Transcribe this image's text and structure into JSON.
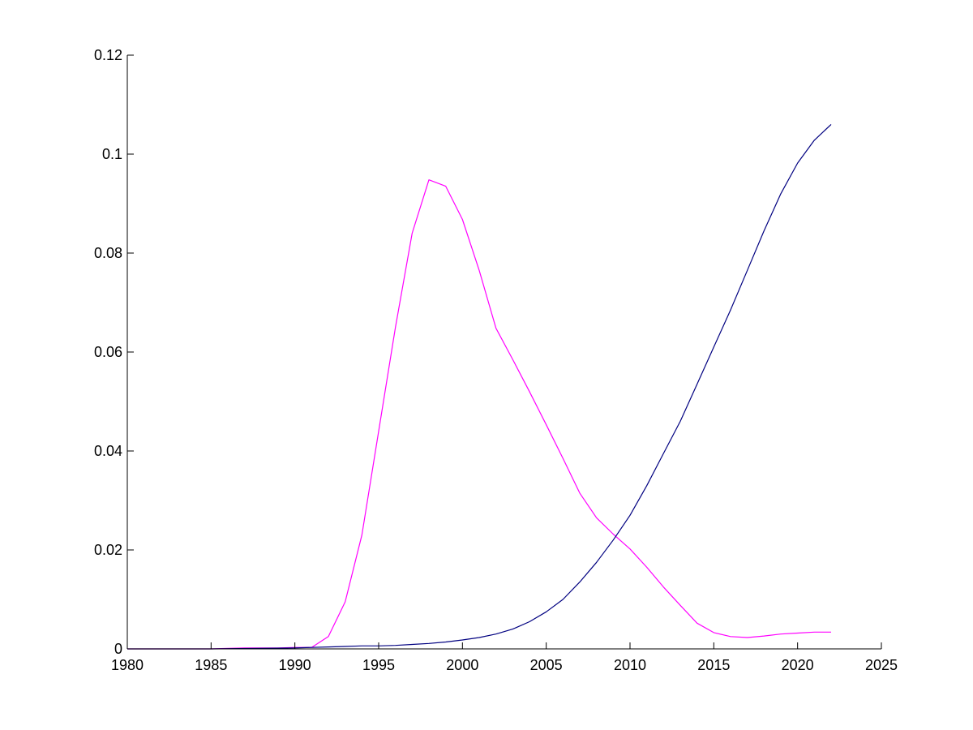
{
  "chart_data": {
    "type": "line",
    "title": "",
    "xlabel": "",
    "ylabel": "",
    "xlim": [
      1980,
      2025
    ],
    "ylim": [
      0,
      0.12
    ],
    "grid": false,
    "legend": "none",
    "x_ticks": [
      {
        "value": 1980,
        "label": "1980"
      },
      {
        "value": 1985,
        "label": "1985"
      },
      {
        "value": 1990,
        "label": "1990"
      },
      {
        "value": 1995,
        "label": "1995"
      },
      {
        "value": 2000,
        "label": "2000"
      },
      {
        "value": 2005,
        "label": "2005"
      },
      {
        "value": 2010,
        "label": "2010"
      },
      {
        "value": 2015,
        "label": "2015"
      },
      {
        "value": 2020,
        "label": "2020"
      },
      {
        "value": 2025,
        "label": "2025"
      }
    ],
    "y_ticks": [
      {
        "value": 0,
        "label": "0"
      },
      {
        "value": 0.02,
        "label": "0.02"
      },
      {
        "value": 0.04,
        "label": "0.04"
      },
      {
        "value": 0.06,
        "label": "0.06"
      },
      {
        "value": 0.08,
        "label": "0.08"
      },
      {
        "value": 0.1,
        "label": "0.1"
      },
      {
        "value": 0.12,
        "label": "0.12"
      }
    ],
    "series": [
      {
        "color": "#ff00ff",
        "x": [
          1980,
          1985,
          1986,
          1987,
          1988,
          1989,
          1990,
          1991,
          1992,
          1993,
          1994,
          1995,
          1996,
          1997,
          1998,
          1999,
          2000,
          2001,
          2002,
          2003,
          2004,
          2005,
          2006,
          2007,
          2008,
          2009,
          2010,
          2011,
          2012,
          2013,
          2014,
          2015,
          2016,
          2017,
          2018,
          2019,
          2020,
          2021,
          2022
        ],
        "y": [
          0,
          0,
          0.0001,
          0.0002,
          0.0002,
          0.0002,
          0.0003,
          0.0003,
          0.0025,
          0.0095,
          0.023,
          0.044,
          0.065,
          0.084,
          0.0948,
          0.0935,
          0.0868,
          0.0765,
          0.0648,
          0.0585,
          0.052,
          0.0453,
          0.0385,
          0.0315,
          0.0265,
          0.0232,
          0.0202,
          0.0165,
          0.0125,
          0.0088,
          0.0052,
          0.0033,
          0.0025,
          0.0023,
          0.0026,
          0.003,
          0.0032,
          0.0034,
          0.0034
        ]
      },
      {
        "color": "#000080",
        "x": [
          1980,
          1985,
          1990,
          1991,
          1992,
          1993,
          1994,
          1995,
          1996,
          1997,
          1998,
          1999,
          2000,
          2001,
          2002,
          2003,
          2004,
          2005,
          2006,
          2007,
          2008,
          2009,
          2010,
          2011,
          2012,
          2013,
          2014,
          2015,
          2016,
          2017,
          2018,
          2019,
          2020,
          2021,
          2022
        ],
        "y": [
          0,
          0,
          0.0002,
          0.0003,
          0.0004,
          0.0005,
          0.0006,
          0.0006,
          0.0007,
          0.0009,
          0.0011,
          0.0014,
          0.0018,
          0.0023,
          0.003,
          0.004,
          0.0055,
          0.0075,
          0.01,
          0.0135,
          0.0175,
          0.022,
          0.027,
          0.033,
          0.0395,
          0.046,
          0.0535,
          0.061,
          0.0685,
          0.0765,
          0.0845,
          0.092,
          0.0982,
          0.1028,
          0.106
        ]
      }
    ]
  }
}
